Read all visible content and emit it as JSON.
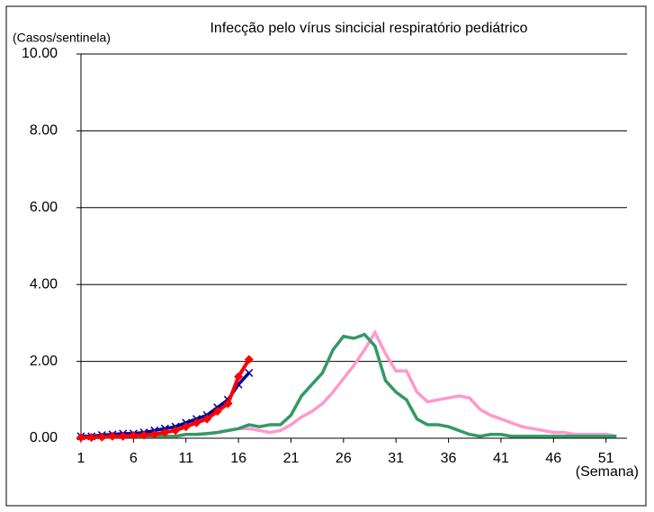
{
  "chart_data": {
    "type": "line",
    "title": "Infecção pelo vírus sincicial respiratório pediátrico",
    "y_label": "(Casos/sentinela)",
    "x_label": "(Semana)",
    "x": [
      1,
      2,
      3,
      4,
      5,
      6,
      7,
      8,
      9,
      10,
      11,
      12,
      13,
      14,
      15,
      16,
      17,
      18,
      19,
      20,
      21,
      22,
      23,
      24,
      25,
      26,
      27,
      28,
      29,
      30,
      31,
      32,
      33,
      34,
      35,
      36,
      37,
      38,
      39,
      40,
      41,
      42,
      43,
      44,
      45,
      46,
      47,
      48,
      49,
      50,
      51,
      52
    ],
    "xlim": [
      1,
      53
    ],
    "xticks": [
      1,
      6,
      11,
      16,
      21,
      26,
      31,
      36,
      41,
      46,
      51
    ],
    "ylim": [
      0,
      10
    ],
    "yticks": [
      {
        "value": 0,
        "label": "0.00"
      },
      {
        "value": 2,
        "label": "2.00"
      },
      {
        "value": 4,
        "label": "4.00"
      },
      {
        "value": 6,
        "label": "6.00"
      },
      {
        "value": 8,
        "label": "8.00"
      },
      {
        "value": 10,
        "label": "10.00"
      }
    ],
    "grid": true,
    "series": [
      {
        "color": "#ff99cc",
        "marker": "none",
        "values": [
          0.05,
          0.05,
          0.05,
          0.05,
          0.05,
          0.05,
          0.05,
          0.05,
          0.05,
          0.05,
          0.1,
          0.1,
          0.12,
          0.15,
          0.2,
          0.25,
          0.25,
          0.2,
          0.15,
          0.2,
          0.35,
          0.55,
          0.7,
          0.9,
          1.2,
          1.55,
          1.9,
          2.3,
          2.75,
          2.2,
          1.75,
          1.75,
          1.2,
          0.95,
          1.0,
          1.05,
          1.1,
          1.05,
          0.75,
          0.6,
          0.5,
          0.4,
          0.3,
          0.25,
          0.2,
          0.15,
          0.15,
          0.1,
          0.1,
          0.1,
          0.1,
          0.05
        ]
      },
      {
        "color": "#339966",
        "marker": "none",
        "values": [
          0.05,
          0.05,
          0.05,
          0.05,
          0.05,
          0.05,
          0.05,
          0.05,
          0.05,
          0.05,
          0.1,
          0.1,
          0.12,
          0.15,
          0.2,
          0.25,
          0.35,
          0.3,
          0.35,
          0.35,
          0.6,
          1.1,
          1.4,
          1.7,
          2.3,
          2.65,
          2.6,
          2.7,
          2.4,
          1.5,
          1.2,
          1.0,
          0.5,
          0.35,
          0.35,
          0.3,
          0.2,
          0.1,
          0.05,
          0.1,
          0.1,
          0.05,
          0.05,
          0.05,
          0.05,
          0.05,
          0.05,
          0.05,
          0.05,
          0.05,
          0.05,
          0.05
        ]
      },
      {
        "color": "#000099",
        "marker": "x",
        "values": [
          0.05,
          0.05,
          0.08,
          0.1,
          0.12,
          0.12,
          0.15,
          0.2,
          0.25,
          0.3,
          0.4,
          0.5,
          0.6,
          0.8,
          1.0,
          1.4,
          1.7,
          null,
          null,
          null,
          null,
          null,
          null,
          null,
          null,
          null,
          null,
          null,
          null,
          null,
          null,
          null,
          null,
          null,
          null,
          null,
          null,
          null,
          null,
          null,
          null,
          null,
          null,
          null,
          null,
          null,
          null,
          null,
          null,
          null,
          null,
          null
        ]
      },
      {
        "color": "#ff0000",
        "marker": "diamond",
        "values": [
          0.02,
          0.02,
          0.03,
          0.05,
          0.05,
          0.07,
          0.08,
          0.1,
          0.15,
          0.2,
          0.3,
          0.4,
          0.5,
          0.7,
          0.9,
          1.6,
          2.05,
          null,
          null,
          null,
          null,
          null,
          null,
          null,
          null,
          null,
          null,
          null,
          null,
          null,
          null,
          null,
          null,
          null,
          null,
          null,
          null,
          null,
          null,
          null,
          null,
          null,
          null,
          null,
          null,
          null,
          null,
          null,
          null,
          null,
          null,
          null
        ]
      }
    ]
  }
}
